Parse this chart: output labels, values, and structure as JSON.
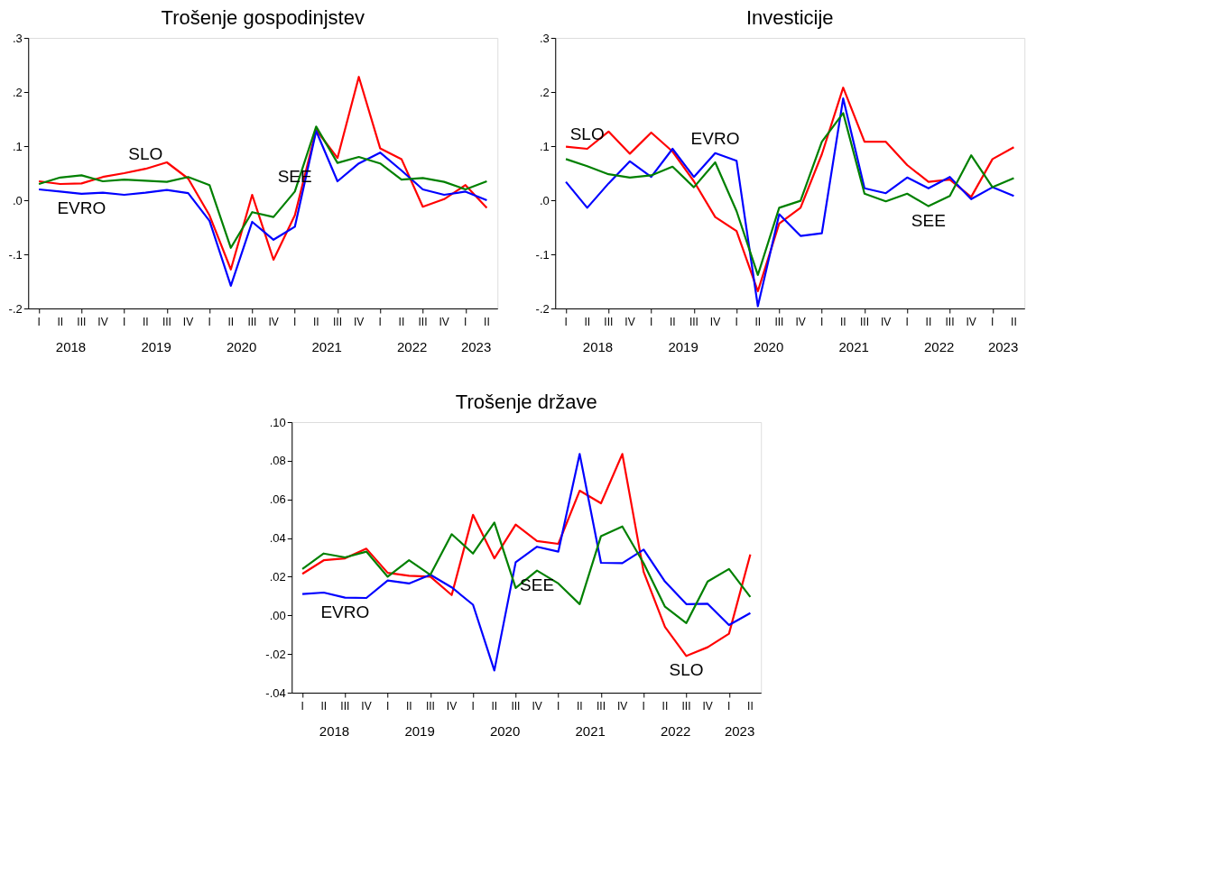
{
  "chart_data": [
    {
      "type": "line",
      "title": "Trošenje gospodinjstev",
      "grid": false,
      "legend": false,
      "categories": [
        "I",
        "II",
        "III",
        "IV",
        "I",
        "II",
        "III",
        "IV",
        "I",
        "II",
        "III",
        "IV",
        "I",
        "II",
        "III",
        "IV",
        "I",
        "II",
        "III",
        "IV",
        "I",
        "II"
      ],
      "annotations": [
        "2018",
        "2019",
        "2020",
        "2021",
        "2022",
        "2023"
      ],
      "ylim": [
        -0.2,
        0.3
      ],
      "yticks": [
        {
          "value": -0.2,
          "label": "-.2"
        },
        {
          "value": -0.1,
          "label": "-.1"
        },
        {
          "value": 0,
          "label": ".0"
        },
        {
          "value": 0.1,
          "label": ".1"
        },
        {
          "value": 0.2,
          "label": ".2"
        },
        {
          "value": 0.3,
          "label": ".3"
        }
      ],
      "series": [
        {
          "name": "SLO",
          "color": "#ff0000",
          "values": [
            0.035,
            0.03,
            0.031,
            0.043,
            0.05,
            0.058,
            0.07,
            0.04,
            -0.028,
            -0.128,
            0.01,
            -0.11,
            -0.028,
            0.13,
            0.078,
            0.228,
            0.096,
            0.076,
            -0.012,
            0.002,
            0.028,
            -0.014
          ]
        },
        {
          "name": "EVRO",
          "color": "#0000ff",
          "values": [
            0.02,
            0.016,
            0.012,
            0.014,
            0.01,
            0.014,
            0.019,
            0.013,
            -0.038,
            -0.158,
            -0.04,
            -0.073,
            -0.049,
            0.128,
            0.035,
            0.068,
            0.088,
            0.055,
            0.02,
            0.01,
            0.016,
            0.0
          ]
        },
        {
          "name": "SEE",
          "color": "#008000",
          "values": [
            0.03,
            0.042,
            0.046,
            0.035,
            0.038,
            0.036,
            0.034,
            0.043,
            0.028,
            -0.088,
            -0.022,
            -0.031,
            0.016,
            0.136,
            0.069,
            0.08,
            0.068,
            0.038,
            0.041,
            0.034,
            0.02,
            0.035
          ]
        }
      ]
    },
    {
      "type": "line",
      "title": "Investicije",
      "grid": false,
      "legend": false,
      "categories": [
        "I",
        "II",
        "III",
        "IV",
        "I",
        "II",
        "III",
        "IV",
        "I",
        "II",
        "III",
        "IV",
        "I",
        "II",
        "III",
        "IV",
        "I",
        "II",
        "III",
        "IV",
        "I",
        "II"
      ],
      "annotations": [
        "2018",
        "2019",
        "2020",
        "2021",
        "2022",
        "2023"
      ],
      "ylim": [
        -0.2,
        0.3
      ],
      "yticks": [
        {
          "value": -0.2,
          "label": "-.2"
        },
        {
          "value": -0.1,
          "label": "-.1"
        },
        {
          "value": 0,
          "label": ".0"
        },
        {
          "value": 0.1,
          "label": ".1"
        },
        {
          "value": 0.2,
          "label": ".2"
        },
        {
          "value": 0.3,
          "label": ".3"
        }
      ],
      "series": [
        {
          "name": "SLO",
          "color": "#ff0000",
          "values": [
            0.099,
            0.095,
            0.127,
            0.086,
            0.125,
            0.09,
            0.035,
            -0.031,
            -0.057,
            -0.168,
            -0.043,
            -0.014,
            0.085,
            0.208,
            0.108,
            0.108,
            0.065,
            0.034,
            0.038,
            0.006,
            0.076,
            0.098
          ]
        },
        {
          "name": "EVRO",
          "color": "#0000ff",
          "values": [
            0.034,
            -0.014,
            0.031,
            0.072,
            0.043,
            0.095,
            0.043,
            0.087,
            0.073,
            -0.196,
            -0.026,
            -0.066,
            -0.061,
            0.188,
            0.022,
            0.013,
            0.042,
            0.022,
            0.043,
            0.002,
            0.024,
            0.008
          ]
        },
        {
          "name": "SEE",
          "color": "#008000",
          "values": [
            0.076,
            0.063,
            0.048,
            0.042,
            0.046,
            0.062,
            0.024,
            0.07,
            -0.02,
            -0.138,
            -0.014,
            -0.001,
            0.108,
            0.161,
            0.012,
            -0.002,
            0.012,
            -0.011,
            0.008,
            0.083,
            0.024,
            0.041
          ]
        }
      ]
    },
    {
      "type": "line",
      "title": "Trošenje države",
      "grid": false,
      "legend": false,
      "categories": [
        "I",
        "II",
        "III",
        "IV",
        "I",
        "II",
        "III",
        "IV",
        "I",
        "II",
        "III",
        "IV",
        "I",
        "II",
        "III",
        "IV",
        "I",
        "II",
        "III",
        "IV",
        "I",
        "II"
      ],
      "annotations": [
        "2018",
        "2019",
        "2020",
        "2021",
        "2022",
        "2023"
      ],
      "ylim": [
        -0.04,
        0.1
      ],
      "yticks": [
        {
          "value": -0.04,
          "label": "-.04"
        },
        {
          "value": -0.02,
          "label": "-.02"
        },
        {
          "value": 0,
          "label": ".00"
        },
        {
          "value": 0.02,
          "label": ".02"
        },
        {
          "value": 0.04,
          "label": ".04"
        },
        {
          "value": 0.06,
          "label": ".06"
        },
        {
          "value": 0.08,
          "label": ".08"
        },
        {
          "value": 0.1,
          "label": ".10"
        }
      ],
      "series": [
        {
          "name": "SLO",
          "color": "#ff0000",
          "values": [
            0.0215,
            0.0285,
            0.0295,
            0.0345,
            0.022,
            0.0205,
            0.02,
            0.0105,
            0.052,
            0.0295,
            0.047,
            0.0385,
            0.037,
            0.0645,
            0.058,
            0.0835,
            0.0225,
            -0.006,
            -0.021,
            -0.0165,
            -0.0095,
            0.0315
          ]
        },
        {
          "name": "EVRO",
          "color": "#0000ff",
          "values": [
            0.011,
            0.0118,
            0.0092,
            0.009,
            0.018,
            0.0165,
            0.021,
            0.0145,
            0.0055,
            -0.0285,
            0.0275,
            0.0355,
            0.033,
            0.0835,
            0.0272,
            0.027,
            0.034,
            0.0175,
            0.0058,
            0.006,
            -0.005,
            0.0012
          ]
        },
        {
          "name": "SEE",
          "color": "#008000",
          "values": [
            0.024,
            0.032,
            0.03,
            0.033,
            0.02,
            0.0285,
            0.021,
            0.042,
            0.032,
            0.048,
            0.0142,
            0.0232,
            0.0165,
            0.0058,
            0.041,
            0.046,
            0.027,
            0.0045,
            -0.004,
            0.0175,
            0.024,
            0.0095
          ]
        }
      ]
    }
  ]
}
